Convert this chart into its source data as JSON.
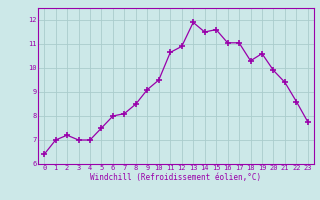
{
  "x": [
    0,
    1,
    2,
    3,
    4,
    5,
    6,
    7,
    8,
    9,
    10,
    11,
    12,
    13,
    14,
    15,
    16,
    17,
    18,
    19,
    20,
    21,
    22,
    23
  ],
  "y": [
    6.4,
    7.0,
    7.2,
    7.0,
    7.0,
    7.5,
    8.0,
    8.1,
    8.5,
    9.1,
    9.5,
    10.65,
    10.9,
    11.9,
    11.5,
    11.6,
    11.05,
    11.05,
    10.3,
    10.6,
    9.9,
    9.4,
    8.6,
    7.75
  ],
  "line_color": "#9900aa",
  "marker": "+",
  "marker_size": 4.0,
  "marker_lw": 1.2,
  "bg_color": "#cce8e8",
  "grid_color": "#aacccc",
  "xlabel": "Windchill (Refroidissement éolien,°C)",
  "xlabel_color": "#9900aa",
  "tick_color": "#9900aa",
  "spine_color": "#9900aa",
  "ylim": [
    6,
    12.5
  ],
  "xlim": [
    -0.5,
    23.5
  ],
  "yticks": [
    6,
    7,
    8,
    9,
    10,
    11,
    12
  ],
  "xticks": [
    0,
    1,
    2,
    3,
    4,
    5,
    6,
    7,
    8,
    9,
    10,
    11,
    12,
    13,
    14,
    15,
    16,
    17,
    18,
    19,
    20,
    21,
    22,
    23
  ],
  "tick_fontsize": 5.0,
  "xlabel_fontsize": 5.5,
  "line_width": 0.9
}
